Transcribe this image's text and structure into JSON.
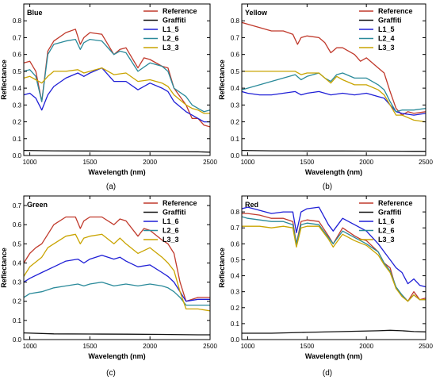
{
  "colors": {
    "reference": "#c0392b",
    "graffiti": "#111111",
    "l1": "#1f1fd6",
    "l2": "#2a8a9a",
    "l3": "#c9a400"
  },
  "chart_data": [
    {
      "type": "line",
      "title": "Blue",
      "caption": "(a)",
      "xlabel": "Wavelength (nm)",
      "ylabel": "Reflectance",
      "xlim": [
        950,
        2500
      ],
      "ylim": [
        0,
        0.9
      ],
      "xticks": [
        1000,
        1500,
        2000,
        2500
      ],
      "yticks": [
        0.0,
        0.1,
        0.2,
        0.3,
        0.4,
        0.5,
        0.6,
        0.7,
        0.8
      ],
      "legend_position": "top-right",
      "series": [
        {
          "name": "Reference",
          "color_key": "reference",
          "x": [
            950,
            1000,
            1050,
            1100,
            1150,
            1200,
            1300,
            1380,
            1420,
            1450,
            1500,
            1600,
            1700,
            1750,
            1800,
            1900,
            1950,
            2000,
            2100,
            2150,
            2200,
            2300,
            2350,
            2400,
            2450,
            2500
          ],
          "y": [
            0.55,
            0.56,
            0.5,
            0.32,
            0.62,
            0.68,
            0.73,
            0.75,
            0.66,
            0.7,
            0.73,
            0.72,
            0.6,
            0.63,
            0.64,
            0.52,
            0.58,
            0.57,
            0.53,
            0.52,
            0.4,
            0.3,
            0.22,
            0.22,
            0.18,
            0.17
          ]
        },
        {
          "name": "Graffiti",
          "color_key": "graffiti",
          "x": [
            950,
            1200,
            1500,
            1800,
            2100,
            2400,
            2500
          ],
          "y": [
            0.03,
            0.028,
            0.027,
            0.026,
            0.024,
            0.022,
            0.02
          ]
        },
        {
          "name": "L1_5",
          "color_key": "l1",
          "x": [
            950,
            1000,
            1050,
            1100,
            1150,
            1200,
            1300,
            1400,
            1450,
            1500,
            1600,
            1700,
            1800,
            1900,
            2000,
            2100,
            2150,
            2200,
            2300,
            2350,
            2400,
            2450,
            2500
          ],
          "y": [
            0.36,
            0.37,
            0.34,
            0.27,
            0.36,
            0.41,
            0.46,
            0.49,
            0.47,
            0.49,
            0.52,
            0.44,
            0.44,
            0.39,
            0.43,
            0.4,
            0.38,
            0.32,
            0.26,
            0.24,
            0.22,
            0.2,
            0.2
          ]
        },
        {
          "name": "L2_6",
          "color_key": "l2",
          "x": [
            950,
            1000,
            1050,
            1100,
            1150,
            1200,
            1300,
            1380,
            1420,
            1450,
            1500,
            1600,
            1700,
            1750,
            1800,
            1900,
            2000,
            2100,
            2150,
            2200,
            2300,
            2350,
            2400,
            2450,
            2500
          ],
          "y": [
            0.5,
            0.51,
            0.47,
            0.32,
            0.6,
            0.66,
            0.68,
            0.69,
            0.63,
            0.67,
            0.69,
            0.68,
            0.6,
            0.62,
            0.61,
            0.5,
            0.55,
            0.53,
            0.5,
            0.4,
            0.35,
            0.3,
            0.28,
            0.26,
            0.27
          ]
        },
        {
          "name": "L3_3",
          "color_key": "l3",
          "x": [
            950,
            1000,
            1050,
            1100,
            1150,
            1200,
            1300,
            1400,
            1450,
            1500,
            1600,
            1700,
            1800,
            1900,
            2000,
            2100,
            2150,
            2200,
            2300,
            2350,
            2400,
            2450,
            2500
          ],
          "y": [
            0.46,
            0.47,
            0.45,
            0.43,
            0.47,
            0.5,
            0.5,
            0.51,
            0.49,
            0.5,
            0.52,
            0.48,
            0.49,
            0.44,
            0.45,
            0.43,
            0.41,
            0.36,
            0.3,
            0.28,
            0.27,
            0.25,
            0.25
          ]
        }
      ]
    },
    {
      "type": "line",
      "title": "Yellow",
      "caption": "(b)",
      "xlabel": "Wavelength (nm)",
      "ylabel": "Reflectance",
      "xlim": [
        950,
        2500
      ],
      "ylim": [
        0,
        0.9
      ],
      "xticks": [
        1000,
        1500,
        2000,
        2500
      ],
      "yticks": [
        0.0,
        0.1,
        0.2,
        0.3,
        0.4,
        0.5,
        0.6,
        0.7,
        0.8
      ],
      "legend_position": "top-right",
      "series": [
        {
          "name": "Reference",
          "color_key": "reference",
          "x": [
            950,
            1000,
            1100,
            1200,
            1300,
            1380,
            1420,
            1450,
            1500,
            1600,
            1650,
            1700,
            1750,
            1800,
            1900,
            1950,
            2000,
            2100,
            2150,
            2200,
            2250,
            2300,
            2350,
            2400,
            2500
          ],
          "y": [
            0.79,
            0.78,
            0.76,
            0.74,
            0.74,
            0.72,
            0.66,
            0.7,
            0.71,
            0.7,
            0.67,
            0.61,
            0.64,
            0.64,
            0.6,
            0.56,
            0.58,
            0.52,
            0.49,
            0.38,
            0.28,
            0.24,
            0.26,
            0.25,
            0.26
          ]
        },
        {
          "name": "Graffiti",
          "color_key": "graffiti",
          "x": [
            950,
            1200,
            1500,
            1800,
            2100,
            2400,
            2500
          ],
          "y": [
            0.03,
            0.028,
            0.027,
            0.027,
            0.026,
            0.025,
            0.025
          ]
        },
        {
          "name": "L1_5",
          "color_key": "l1",
          "x": [
            950,
            1000,
            1100,
            1200,
            1300,
            1400,
            1450,
            1500,
            1600,
            1700,
            1800,
            1900,
            2000,
            2100,
            2150,
            2200,
            2250,
            2300,
            2400,
            2500
          ],
          "y": [
            0.38,
            0.37,
            0.36,
            0.36,
            0.37,
            0.38,
            0.36,
            0.37,
            0.38,
            0.36,
            0.37,
            0.36,
            0.37,
            0.35,
            0.34,
            0.3,
            0.26,
            0.25,
            0.24,
            0.25
          ]
        },
        {
          "name": "L2_4",
          "color_key": "l2",
          "x": [
            950,
            1000,
            1100,
            1200,
            1300,
            1400,
            1450,
            1500,
            1600,
            1650,
            1700,
            1750,
            1800,
            1900,
            2000,
            2100,
            2150,
            2200,
            2250,
            2300,
            2400,
            2500
          ],
          "y": [
            0.39,
            0.4,
            0.42,
            0.44,
            0.46,
            0.48,
            0.45,
            0.47,
            0.49,
            0.46,
            0.44,
            0.48,
            0.49,
            0.46,
            0.46,
            0.42,
            0.39,
            0.32,
            0.26,
            0.27,
            0.27,
            0.28
          ]
        },
        {
          "name": "L3_3",
          "color_key": "l3",
          "x": [
            950,
            1000,
            1100,
            1200,
            1300,
            1400,
            1450,
            1500,
            1600,
            1650,
            1700,
            1750,
            1800,
            1900,
            2000,
            2100,
            2150,
            2200,
            2250,
            2300,
            2400,
            2500
          ],
          "y": [
            0.5,
            0.5,
            0.5,
            0.5,
            0.5,
            0.5,
            0.48,
            0.49,
            0.49,
            0.46,
            0.43,
            0.47,
            0.45,
            0.42,
            0.42,
            0.39,
            0.36,
            0.3,
            0.24,
            0.24,
            0.21,
            0.2
          ]
        }
      ]
    },
    {
      "type": "line",
      "title": "Green",
      "caption": "(c)",
      "xlabel": "Wavelength (nm)",
      "ylabel": "Reflectance",
      "xlim": [
        950,
        2500
      ],
      "ylim": [
        0,
        0.75
      ],
      "xticks": [
        1000,
        1500,
        2000,
        2500
      ],
      "yticks": [
        0.0,
        0.1,
        0.2,
        0.3,
        0.4,
        0.5,
        0.6,
        0.7
      ],
      "legend_position": "top-right",
      "series": [
        {
          "name": "Reference",
          "color_key": "reference",
          "x": [
            950,
            1000,
            1050,
            1100,
            1150,
            1200,
            1300,
            1380,
            1420,
            1450,
            1500,
            1600,
            1700,
            1750,
            1800,
            1900,
            1950,
            2000,
            2100,
            2150,
            2200,
            2250,
            2300,
            2400,
            2500
          ],
          "y": [
            0.4,
            0.45,
            0.48,
            0.5,
            0.55,
            0.6,
            0.64,
            0.64,
            0.58,
            0.62,
            0.64,
            0.64,
            0.6,
            0.63,
            0.62,
            0.54,
            0.58,
            0.57,
            0.52,
            0.5,
            0.45,
            0.3,
            0.2,
            0.22,
            0.22
          ]
        },
        {
          "name": "Graffiti",
          "color_key": "graffiti",
          "x": [
            950,
            1200,
            1500,
            1800,
            2100,
            2400,
            2500
          ],
          "y": [
            0.035,
            0.03,
            0.029,
            0.028,
            0.027,
            0.025,
            0.025
          ]
        },
        {
          "name": "L1_6",
          "color_key": "l1",
          "x": [
            950,
            1000,
            1100,
            1200,
            1300,
            1400,
            1450,
            1500,
            1600,
            1700,
            1750,
            1800,
            1900,
            2000,
            2100,
            2150,
            2200,
            2250,
            2300,
            2400,
            2500
          ],
          "y": [
            0.3,
            0.32,
            0.35,
            0.38,
            0.41,
            0.42,
            0.4,
            0.42,
            0.44,
            0.42,
            0.43,
            0.41,
            0.38,
            0.39,
            0.35,
            0.33,
            0.3,
            0.25,
            0.2,
            0.21,
            0.21
          ]
        },
        {
          "name": "L2_6",
          "color_key": "l2",
          "x": [
            950,
            1000,
            1100,
            1200,
            1300,
            1400,
            1450,
            1500,
            1600,
            1700,
            1800,
            1900,
            2000,
            2100,
            2150,
            2200,
            2250,
            2300,
            2400,
            2500
          ],
          "y": [
            0.22,
            0.24,
            0.25,
            0.27,
            0.28,
            0.29,
            0.28,
            0.29,
            0.3,
            0.28,
            0.29,
            0.28,
            0.29,
            0.28,
            0.27,
            0.25,
            0.22,
            0.18,
            0.18,
            0.18
          ]
        },
        {
          "name": "L3_3",
          "color_key": "l3",
          "x": [
            950,
            1000,
            1100,
            1150,
            1200,
            1300,
            1380,
            1420,
            1450,
            1500,
            1600,
            1700,
            1750,
            1800,
            1900,
            2000,
            2100,
            2150,
            2200,
            2250,
            2300,
            2400,
            2500
          ],
          "y": [
            0.33,
            0.38,
            0.43,
            0.48,
            0.5,
            0.54,
            0.55,
            0.5,
            0.53,
            0.54,
            0.55,
            0.5,
            0.53,
            0.5,
            0.45,
            0.48,
            0.43,
            0.4,
            0.36,
            0.25,
            0.16,
            0.16,
            0.15
          ]
        }
      ]
    },
    {
      "type": "line",
      "title": "Red",
      "caption": "(d)",
      "xlabel": "Wavelength (nm)",
      "ylabel": "Reflectance",
      "xlim": [
        950,
        2500
      ],
      "ylim": [
        0,
        0.9
      ],
      "xticks": [
        1000,
        1500,
        2000,
        2500
      ],
      "yticks": [
        0.0,
        0.1,
        0.2,
        0.3,
        0.4,
        0.5,
        0.6,
        0.7,
        0.8
      ],
      "legend_position": "top-right",
      "series": [
        {
          "name": "Reference",
          "color_key": "reference",
          "x": [
            950,
            1000,
            1100,
            1200,
            1300,
            1380,
            1410,
            1450,
            1500,
            1600,
            1680,
            1720,
            1800,
            1900,
            1950,
            2000,
            2100,
            2150,
            2200,
            2250,
            2300,
            2350,
            2400,
            2450,
            2500
          ],
          "y": [
            0.79,
            0.79,
            0.78,
            0.76,
            0.76,
            0.74,
            0.6,
            0.74,
            0.75,
            0.74,
            0.65,
            0.6,
            0.7,
            0.65,
            0.63,
            0.62,
            0.55,
            0.48,
            0.45,
            0.32,
            0.28,
            0.24,
            0.3,
            0.25,
            0.26
          ]
        },
        {
          "name": "Graffiti",
          "color_key": "graffiti",
          "x": [
            950,
            1200,
            1500,
            1800,
            2100,
            2200,
            2300,
            2400,
            2500
          ],
          "y": [
            0.04,
            0.04,
            0.045,
            0.05,
            0.055,
            0.058,
            0.055,
            0.05,
            0.048
          ]
        },
        {
          "name": "L1_6",
          "color_key": "l1",
          "x": [
            950,
            1000,
            1100,
            1200,
            1300,
            1380,
            1410,
            1450,
            1500,
            1600,
            1680,
            1720,
            1800,
            1900,
            2000,
            2100,
            2150,
            2200,
            2250,
            2300,
            2350,
            2400,
            2450,
            2500
          ],
          "y": [
            0.82,
            0.83,
            0.81,
            0.79,
            0.8,
            0.8,
            0.67,
            0.8,
            0.82,
            0.83,
            0.72,
            0.68,
            0.76,
            0.72,
            0.68,
            0.6,
            0.55,
            0.5,
            0.45,
            0.42,
            0.35,
            0.38,
            0.34,
            0.33
          ]
        },
        {
          "name": "L2_6",
          "color_key": "l2",
          "x": [
            950,
            1000,
            1100,
            1200,
            1300,
            1380,
            1410,
            1450,
            1500,
            1600,
            1680,
            1720,
            1800,
            1900,
            2000,
            2100,
            2150,
            2200,
            2250,
            2300,
            2350,
            2400,
            2450,
            2500
          ],
          "y": [
            0.77,
            0.76,
            0.75,
            0.74,
            0.74,
            0.72,
            0.6,
            0.72,
            0.73,
            0.72,
            0.64,
            0.6,
            0.68,
            0.64,
            0.6,
            0.55,
            0.48,
            0.43,
            0.33,
            0.28,
            0.24,
            0.28,
            0.25,
            0.25
          ]
        },
        {
          "name": "L3_3",
          "color_key": "l3",
          "x": [
            950,
            1000,
            1100,
            1200,
            1300,
            1380,
            1410,
            1450,
            1500,
            1600,
            1680,
            1720,
            1800,
            1900,
            2000,
            2100,
            2150,
            2200,
            2250,
            2300,
            2350,
            2400,
            2450,
            2500
          ],
          "y": [
            0.71,
            0.71,
            0.71,
            0.7,
            0.71,
            0.7,
            0.58,
            0.7,
            0.71,
            0.71,
            0.63,
            0.58,
            0.66,
            0.62,
            0.59,
            0.53,
            0.47,
            0.42,
            0.32,
            0.27,
            0.24,
            0.28,
            0.25,
            0.25
          ]
        }
      ]
    }
  ]
}
